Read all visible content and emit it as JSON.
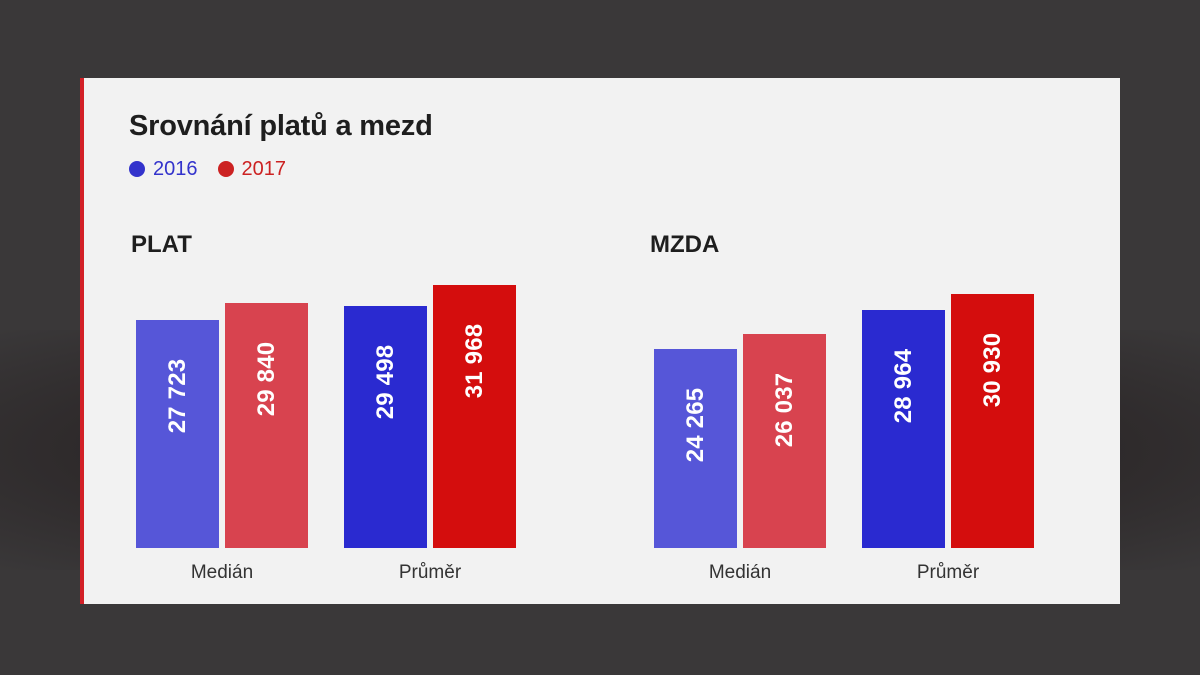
{
  "chart_data": {
    "type": "bar",
    "title": "Srovnání platů a mezd",
    "legend": [
      {
        "name": "2016",
        "color": "#3333cc"
      },
      {
        "name": "2017",
        "color": "#cc2222"
      }
    ],
    "legend_position": "top-left",
    "grid": false,
    "panels": [
      {
        "name": "PLAT",
        "categories": [
          "Medián",
          "Průměr"
        ],
        "series": [
          {
            "name": "2016",
            "values": [
              27723,
              29498
            ],
            "labels": [
              "27 723",
              "29 498"
            ],
            "colors": [
              "#5656d8",
              "#2a2ad0"
            ]
          },
          {
            "name": "2017",
            "values": [
              29840,
              31968
            ],
            "labels": [
              "29 840",
              "31 968"
            ],
            "colors": [
              "#d8434f",
              "#d40d0d"
            ]
          }
        ]
      },
      {
        "name": "MZDA",
        "categories": [
          "Medián",
          "Průměr"
        ],
        "series": [
          {
            "name": "2016",
            "values": [
              24265,
              28964
            ],
            "labels": [
              "24 265",
              "28 964"
            ],
            "colors": [
              "#5656d8",
              "#2a2ad0"
            ]
          },
          {
            "name": "2017",
            "values": [
              26037,
              30930
            ],
            "labels": [
              "26 037",
              "30 930"
            ],
            "colors": [
              "#d8434f",
              "#d40d0d"
            ]
          }
        ]
      }
    ]
  },
  "colors": {
    "accent": "#d32027",
    "legend_2016": "#3333cc",
    "legend_2017": "#cc2222"
  }
}
